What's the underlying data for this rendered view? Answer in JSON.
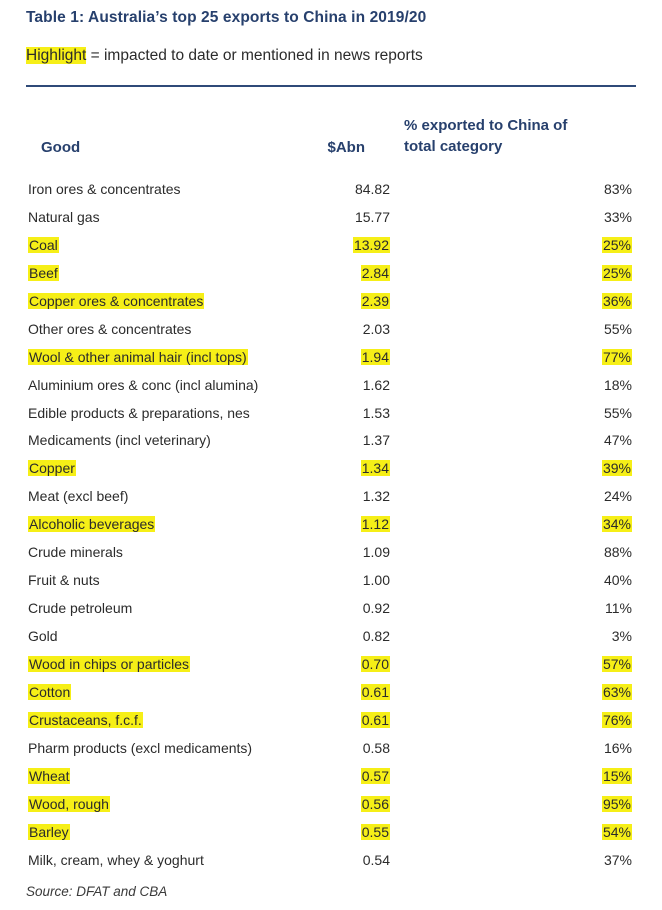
{
  "title": "Table 1: Australia’s top 25 exports to China in 2019/20",
  "legend": {
    "highlight_word": "Highlight",
    "rest": " = impacted to date or mentioned in news reports"
  },
  "headers": {
    "good": "Good",
    "value": "$Abn",
    "pct_line1": "% exported to China of",
    "pct_line2": "total category"
  },
  "colors": {
    "highlight": "#f6ef17",
    "heading": "#27406d"
  },
  "rows": [
    {
      "good": "Iron ores & concentrates",
      "value": "84.82",
      "pct": "83%",
      "highlighted": false
    },
    {
      "good": "Natural gas",
      "value": "15.77",
      "pct": "33%",
      "highlighted": false
    },
    {
      "good": "Coal",
      "value": "13.92",
      "pct": "25%",
      "highlighted": true
    },
    {
      "good": "Beef",
      "value": "2.84",
      "pct": "25%",
      "highlighted": true
    },
    {
      "good": "Copper ores & concentrates",
      "value": "2.39",
      "pct": "36%",
      "highlighted": true
    },
    {
      "good": "Other ores & concentrates",
      "value": "2.03",
      "pct": "55%",
      "highlighted": false
    },
    {
      "good": "Wool & other animal hair (incl tops)",
      "value": "1.94",
      "pct": "77%",
      "highlighted": true
    },
    {
      "good": "Aluminium ores & conc (incl alumina)",
      "value": "1.62",
      "pct": "18%",
      "highlighted": false
    },
    {
      "good": "Edible products & preparations, nes",
      "value": "1.53",
      "pct": "55%",
      "highlighted": false
    },
    {
      "good": "Medicaments (incl veterinary)",
      "value": "1.37",
      "pct": "47%",
      "highlighted": false
    },
    {
      "good": "Copper",
      "value": "1.34",
      "pct": "39%",
      "highlighted": true
    },
    {
      "good": "Meat (excl beef)",
      "value": "1.32",
      "pct": "24%",
      "highlighted": false
    },
    {
      "good": "Alcoholic beverages",
      "value": "1.12",
      "pct": "34%",
      "highlighted": true
    },
    {
      "good": "Crude minerals",
      "value": "1.09",
      "pct": "88%",
      "highlighted": false
    },
    {
      "good": "Fruit & nuts",
      "value": "1.00",
      "pct": "40%",
      "highlighted": false
    },
    {
      "good": "Crude petroleum",
      "value": "0.92",
      "pct": "11%",
      "highlighted": false
    },
    {
      "good": "Gold",
      "value": "0.82",
      "pct": "3%",
      "highlighted": false
    },
    {
      "good": "Wood in chips or particles",
      "value": "0.70",
      "pct": "57%",
      "highlighted": true
    },
    {
      "good": "Cotton",
      "value": "0.61",
      "pct": "63%",
      "highlighted": true
    },
    {
      "good": "Crustaceans, f.c.f.",
      "value": "0.61",
      "pct": "76%",
      "highlighted": true
    },
    {
      "good": "Pharm products (excl medicaments)",
      "value": "0.58",
      "pct": "16%",
      "highlighted": false
    },
    {
      "good": "Wheat",
      "value": "0.57",
      "pct": "15%",
      "highlighted": true
    },
    {
      "good": "Wood, rough",
      "value": "0.56",
      "pct": "95%",
      "highlighted": true
    },
    {
      "good": "Barley",
      "value": "0.55",
      "pct": "54%",
      "highlighted": true
    },
    {
      "good": "Milk, cream, whey & yoghurt",
      "value": "0.54",
      "pct": "37%",
      "highlighted": false
    }
  ],
  "source": "Source: DFAT and CBA"
}
